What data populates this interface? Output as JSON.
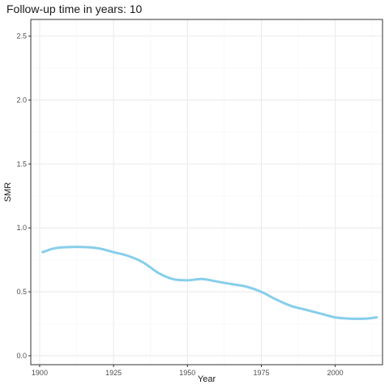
{
  "title": "Follow-up time in years: 10",
  "colors": {
    "line": "#87CEEB",
    "panel_border": "#333333",
    "grid_major": "#ebebeb",
    "grid_minor": "#f5f5f5"
  },
  "chart_data": {
    "type": "line",
    "title": "Follow-up time in years: 10",
    "xlabel": "Year",
    "ylabel": "SMR",
    "xlim": [
      1897,
      2016
    ],
    "ylim": [
      -0.07,
      2.63
    ],
    "xticks": [
      1900,
      1925,
      1950,
      1975,
      2000
    ],
    "yticks": [
      0.0,
      0.5,
      1.0,
      1.5,
      2.0,
      2.5
    ],
    "ytick_labels": [
      "0.0",
      "0.5",
      "1.0",
      "1.5",
      "2.0",
      "2.5"
    ],
    "grid": true,
    "legend": "none",
    "series": [
      {
        "x": [
          1901,
          1905,
          1910,
          1915,
          1920,
          1925,
          1930,
          1935,
          1940,
          1945,
          1950,
          1955,
          1960,
          1965,
          1970,
          1975,
          1980,
          1985,
          1990,
          1995,
          2000,
          2005,
          2010,
          2014
        ],
        "y": [
          0.81,
          0.84,
          0.85,
          0.85,
          0.84,
          0.81,
          0.78,
          0.73,
          0.65,
          0.6,
          0.59,
          0.6,
          0.58,
          0.56,
          0.54,
          0.5,
          0.44,
          0.39,
          0.36,
          0.33,
          0.3,
          0.29,
          0.29,
          0.3
        ]
      }
    ]
  }
}
